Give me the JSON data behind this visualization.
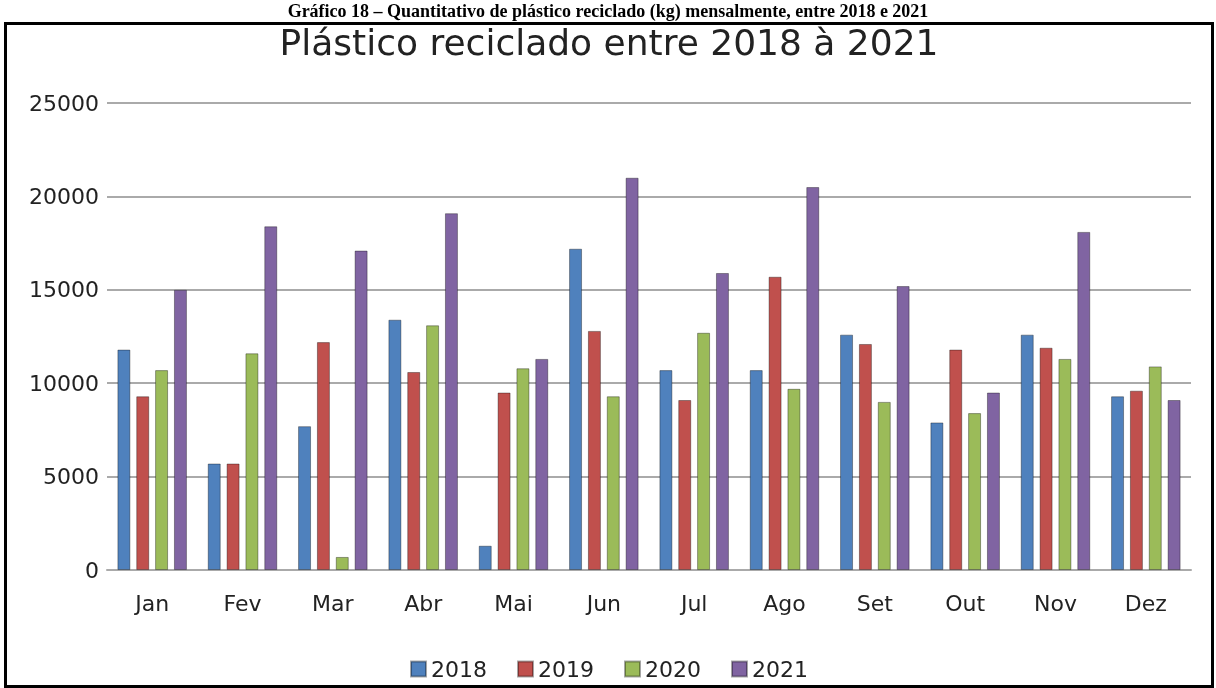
{
  "chart_data": {
    "type": "bar",
    "title": "Plástico reciclado entre 2018 à 2021",
    "annotations": [
      "Gráfico 18 – Quantitativo de plástico reciclado (kg) mensalmente, entre 2018 e 2021"
    ],
    "categories": [
      "Jan",
      "Fev",
      "Mar",
      "Abr",
      "Mai",
      "Jun",
      "Jul",
      "Ago",
      "Set",
      "Out",
      "Nov",
      "Dez"
    ],
    "series": [
      {
        "name": "2018",
        "color": "#4f81bd",
        "values": [
          11800,
          5700,
          7700,
          13400,
          1300,
          17200,
          10700,
          10700,
          12600,
          7900,
          12600,
          9300
        ]
      },
      {
        "name": "2019",
        "color": "#c0504d",
        "values": [
          9300,
          5700,
          12200,
          10600,
          9500,
          12800,
          9100,
          15700,
          12100,
          11800,
          11900,
          9600
        ]
      },
      {
        "name": "2020",
        "color": "#9bbb59",
        "values": [
          10700,
          11600,
          700,
          13100,
          10800,
          9300,
          12700,
          9700,
          9000,
          8400,
          11300,
          10900
        ]
      },
      {
        "name": "2021",
        "color": "#8064a2",
        "values": [
          15000,
          18400,
          17100,
          19100,
          11300,
          21000,
          15900,
          20500,
          15200,
          9500,
          18100,
          9100
        ]
      }
    ],
    "ylim": [
      0,
      25000
    ],
    "yticks": [
      0,
      5000,
      10000,
      15000,
      20000,
      25000
    ],
    "grid": "y",
    "legend": "bottom"
  }
}
